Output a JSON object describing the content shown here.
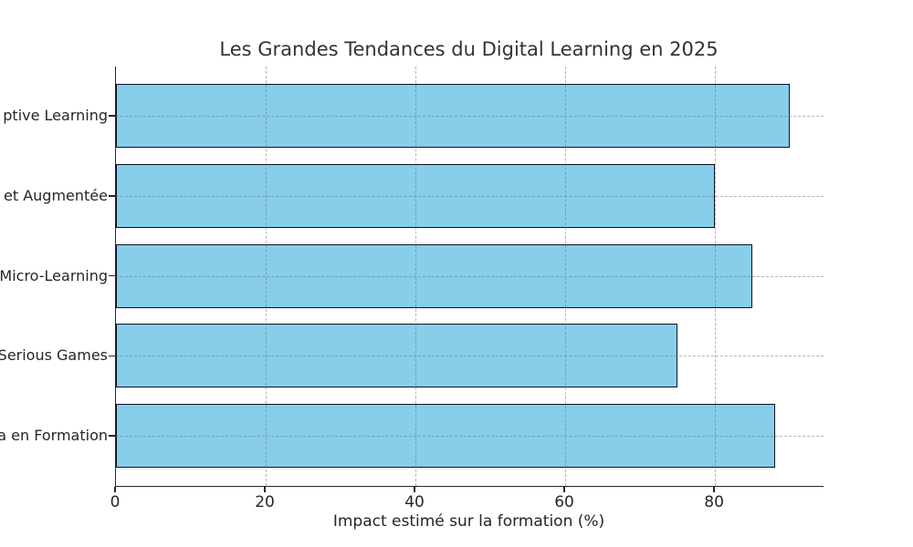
{
  "chart_data": {
    "type": "bar",
    "orientation": "horizontal",
    "title": "Les Grandes Tendances du Digital Learning en 2025",
    "categories": [
      "ptive Learning",
      "et Augmentée",
      "Micro-Learning",
      "Serious Games",
      "a en Formation"
    ],
    "values": [
      90,
      80,
      85,
      75,
      88
    ],
    "xlabel": "Impact estimé sur la formation (%)",
    "ylabel": "",
    "x_ticks": [
      0,
      20,
      40,
      60,
      80
    ],
    "xlim": [
      0,
      94.5
    ],
    "grid": "dashed gridlines on both axes, drawn over bars",
    "legend": "none",
    "layout_note": "y-axis category labels are clipped at the left edge of the image",
    "colors": {
      "bar_fill": "#87CEEB",
      "bar_edge": "#101020",
      "grid": "#c6c6c6",
      "axis": "#262626",
      "tick_label": "#262626",
      "title": "#333333",
      "background": "#ffffff"
    }
  }
}
